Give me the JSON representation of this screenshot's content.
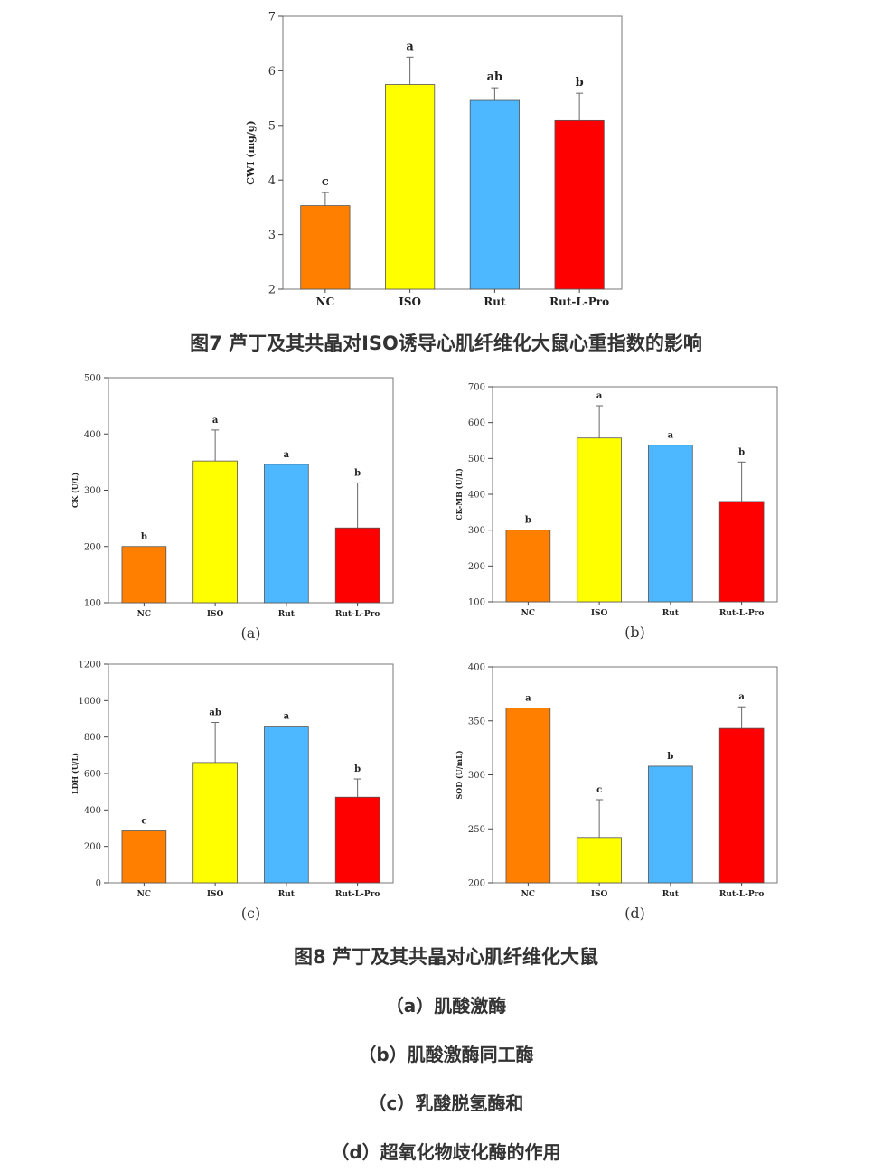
{
  "colors": {
    "NC": "#FF8000",
    "ISO": "#FFFF00",
    "Rut": "#4DB8FF",
    "Rut-L-Pro": "#FF0000"
  },
  "fig7_caption": "图7 芦丁及其共晶对ISO诱导心肌纤维化大鼠心重指数的影响",
  "fig8_caption": "图8 芦丁及其共晶对心肌纤维化大鼠",
  "fig8_subcaptions": [
    "（a）肌酸激酶",
    "（b）肌酸激酶同工酶",
    "（c）乳酸脱氢酶和",
    "（d）超氧化物歧化酶的作用"
  ],
  "chart_data": [
    {
      "type": "bar",
      "title": "",
      "panel_label": "",
      "ylabel": "CWI (mg/g)",
      "ylim": [
        2,
        7
      ],
      "yticks": [
        2,
        3,
        4,
        5,
        6,
        7
      ],
      "categories": [
        "NC",
        "ISO",
        "Rut",
        "Rut-L-Pro"
      ],
      "values": [
        3.53,
        5.75,
        5.46,
        5.09
      ],
      "errors": [
        0.24,
        0.5,
        0.23,
        0.5
      ],
      "significance": [
        "c",
        "a",
        "ab",
        "b"
      ],
      "grid": false
    },
    {
      "type": "bar",
      "title": "",
      "panel_label": "(a)",
      "ylabel": "CK (U/L)",
      "ylim": [
        100,
        500
      ],
      "yticks": [
        100,
        200,
        300,
        400,
        500
      ],
      "categories": [
        "NC",
        "ISO",
        "Rut",
        "Rut-L-Pro"
      ],
      "values": [
        200,
        352,
        346,
        233
      ],
      "errors": [
        0,
        55,
        0,
        80
      ],
      "significance": [
        "b",
        "a",
        "a",
        "b"
      ],
      "grid": false
    },
    {
      "type": "bar",
      "title": "",
      "panel_label": "(b)",
      "ylabel": "CK-MB (U/L)",
      "ylim": [
        100,
        700
      ],
      "yticks": [
        100,
        200,
        300,
        400,
        500,
        600,
        700
      ],
      "categories": [
        "NC",
        "ISO",
        "Rut",
        "Rut-L-Pro"
      ],
      "values": [
        300,
        557,
        537,
        380
      ],
      "errors": [
        0,
        90,
        0,
        110
      ],
      "significance": [
        "b",
        "a",
        "a",
        "b"
      ],
      "grid": false
    },
    {
      "type": "bar",
      "title": "",
      "panel_label": "(c)",
      "ylabel": "LDH (U/L)",
      "ylim": [
        0,
        1200
      ],
      "yticks": [
        0,
        200,
        400,
        600,
        800,
        1000,
        1200
      ],
      "categories": [
        "NC",
        "ISO",
        "Rut",
        "Rut-L-Pro"
      ],
      "values": [
        285,
        660,
        860,
        470
      ],
      "errors": [
        0,
        220,
        0,
        100
      ],
      "significance": [
        "c",
        "ab",
        "a",
        "b"
      ],
      "grid": false
    },
    {
      "type": "bar",
      "title": "",
      "panel_label": "(d)",
      "ylabel": "SOD (U/mL)",
      "ylim": [
        200,
        400
      ],
      "yticks": [
        200,
        250,
        300,
        350,
        400
      ],
      "categories": [
        "NC",
        "ISO",
        "Rut",
        "Rut-L-Pro"
      ],
      "values": [
        362,
        242,
        308,
        343
      ],
      "errors": [
        0,
        35,
        0,
        20
      ],
      "significance": [
        "a",
        "c",
        "b",
        "a"
      ],
      "grid": false
    }
  ]
}
